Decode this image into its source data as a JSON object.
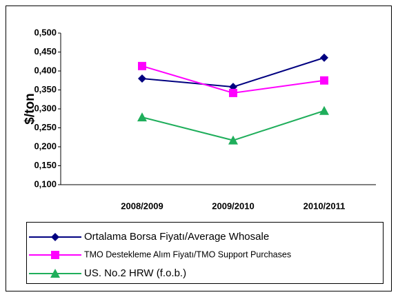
{
  "chart_data": {
    "type": "line",
    "ylabel": "$/ton",
    "categories": [
      "2008/2009",
      "2009/2010",
      "2010/2011"
    ],
    "series": [
      {
        "name": "Ortalama Borsa Fiyatı/Average Whosale",
        "color": "#000080",
        "marker": "diamond",
        "values": [
          0.38,
          0.358,
          0.435
        ]
      },
      {
        "name": "TMO Destekleme Alım Fiyatı/TMO Support Purchases",
        "color": "#ff00ff",
        "marker": "square",
        "values": [
          0.413,
          0.342,
          0.375
        ]
      },
      {
        "name": "US. No.2 HRW (f.o.b.)",
        "color": "#1fae5b",
        "marker": "triangle",
        "values": [
          0.278,
          0.217,
          0.295
        ]
      }
    ],
    "ylim": [
      0.1,
      0.5
    ],
    "yticks": [
      {
        "value": 0.1,
        "label": "0,100"
      },
      {
        "value": 0.15,
        "label": "0,150"
      },
      {
        "value": 0.2,
        "label": "0,200"
      },
      {
        "value": 0.25,
        "label": "0,250"
      },
      {
        "value": 0.3,
        "label": "0,300"
      },
      {
        "value": 0.35,
        "label": "0,350"
      },
      {
        "value": 0.4,
        "label": "0,400"
      },
      {
        "value": 0.45,
        "label": "0,450"
      },
      {
        "value": 0.5,
        "label": "0,500"
      }
    ],
    "legend": "bottom"
  }
}
